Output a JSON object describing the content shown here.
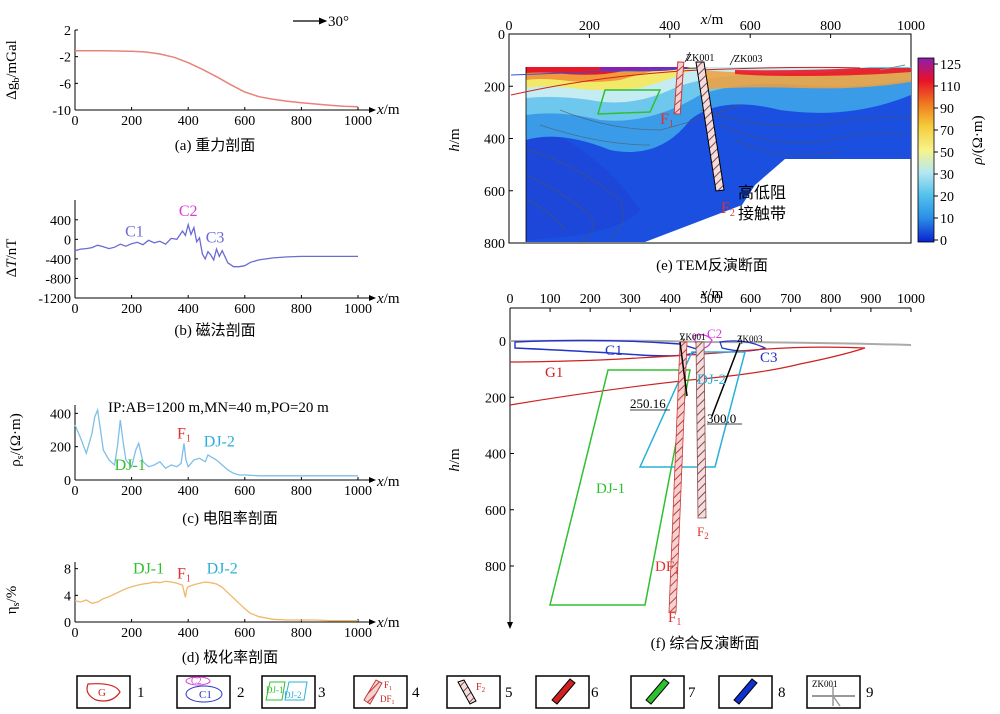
{
  "chart_data": [
    {
      "id": "a",
      "type": "line",
      "caption": "(a) 重力剖面",
      "xlabel": "x/m",
      "ylabel": "Δg_b/mGal",
      "x_ticks": [
        0,
        200,
        400,
        600,
        800,
        1000
      ],
      "y_ticks": [
        2,
        -2,
        -6,
        -10
      ],
      "xlim": [
        0,
        1000
      ],
      "ylim": [
        -10,
        2
      ],
      "color": "#e8837a",
      "direction_label": "30°",
      "series": [
        {
          "x": [
            0,
            50,
            100,
            150,
            200,
            250,
            300,
            350,
            400,
            450,
            500,
            550,
            600,
            650,
            700,
            750,
            800,
            850,
            900,
            950,
            1000
          ],
          "y": [
            -1.1,
            -1.1,
            -1.1,
            -1.15,
            -1.2,
            -1.3,
            -1.6,
            -2.1,
            -2.9,
            -3.9,
            -5.0,
            -6.2,
            -7.3,
            -8.0,
            -8.4,
            -8.7,
            -8.9,
            -9.1,
            -9.3,
            -9.45,
            -9.5
          ]
        }
      ]
    },
    {
      "id": "b",
      "type": "line",
      "caption": "(b) 磁法剖面",
      "xlabel": "x/m",
      "ylabel": "ΔT/nT",
      "x_ticks": [
        0,
        200,
        400,
        600,
        800,
        1000
      ],
      "y_ticks": [
        400,
        0,
        -400,
        -800,
        -1200
      ],
      "xlim": [
        0,
        1000
      ],
      "ylim": [
        -1200,
        600
      ],
      "color": "#6b6bd1",
      "annotations": [
        {
          "text": "C1",
          "x": 210,
          "y": 60,
          "color": "#6b6bd1"
        },
        {
          "text": "C2",
          "x": 400,
          "y": 480,
          "color": "#d63bd6"
        },
        {
          "text": "C3",
          "x": 495,
          "y": -60,
          "color": "#6b6bd1"
        }
      ],
      "series": [
        {
          "x": [
            0,
            20,
            40,
            60,
            80,
            100,
            120,
            140,
            160,
            180,
            200,
            220,
            240,
            260,
            280,
            300,
            320,
            340,
            360,
            380,
            390,
            400,
            410,
            420,
            430,
            440,
            450,
            460,
            470,
            480,
            490,
            500,
            510,
            520,
            540,
            560,
            580,
            600,
            620,
            650,
            700,
            750,
            800,
            850,
            900,
            950,
            1000
          ],
          "y": [
            -230,
            -200,
            -190,
            -170,
            -120,
            -150,
            -190,
            -160,
            -100,
            -140,
            -90,
            -60,
            -110,
            -20,
            -70,
            -40,
            -100,
            20,
            0,
            170,
            80,
            300,
            100,
            240,
            -50,
            30,
            -300,
            -400,
            -250,
            -320,
            -420,
            -200,
            -350,
            -230,
            -480,
            -560,
            -560,
            -540,
            -470,
            -420,
            -380,
            -360,
            -350,
            -350,
            -350,
            -350,
            -350
          ]
        }
      ]
    },
    {
      "id": "c",
      "type": "line",
      "caption": "(c) 电阻率剖面",
      "xlabel": "x/m",
      "ylabel": "ρ_s/(Ω·m)",
      "x_ticks": [
        0,
        200,
        400,
        600,
        800,
        1000
      ],
      "y_ticks": [
        400,
        200,
        0
      ],
      "xlim": [
        0,
        1000
      ],
      "ylim": [
        0,
        450
      ],
      "color": "#7fbfe8",
      "params_label": "IP:AB=1200 m,MN=40 m,PO=20 m",
      "annotations": [
        {
          "text": "F1",
          "x": 385,
          "y": 250,
          "color": "#e03030"
        },
        {
          "text": "DJ-2",
          "x": 510,
          "y": 200,
          "color": "#2ab0d8"
        },
        {
          "text": "DJ-1",
          "x": 195,
          "y": 60,
          "color": "#2fc02f"
        }
      ],
      "series": [
        {
          "x": [
            0,
            20,
            40,
            60,
            70,
            80,
            90,
            100,
            120,
            140,
            150,
            160,
            170,
            180,
            200,
            215,
            225,
            240,
            260,
            280,
            300,
            320,
            340,
            360,
            375,
            385,
            392,
            400,
            420,
            440,
            460,
            470,
            480,
            500,
            520,
            540,
            560,
            580,
            600,
            650,
            700,
            800,
            900,
            1000
          ],
          "y": [
            330,
            250,
            160,
            280,
            380,
            420,
            300,
            180,
            120,
            90,
            200,
            360,
            230,
            120,
            80,
            180,
            220,
            110,
            80,
            90,
            110,
            70,
            90,
            80,
            100,
            220,
            120,
            80,
            120,
            130,
            110,
            150,
            140,
            120,
            90,
            60,
            40,
            30,
            30,
            25,
            25,
            25,
            25,
            25
          ]
        }
      ]
    },
    {
      "id": "d",
      "type": "line",
      "caption": "(d) 极化率剖面",
      "xlabel": "x/m",
      "ylabel": "η_s/%",
      "x_ticks": [
        0,
        200,
        400,
        600,
        800,
        1000
      ],
      "y_ticks": [
        8,
        4,
        0
      ],
      "xlim": [
        0,
        1000
      ],
      "ylim": [
        0,
        9
      ],
      "color": "#f0b86a",
      "annotations": [
        {
          "text": "DJ-1",
          "x": 260,
          "y": 7.3,
          "color": "#2fc02f"
        },
        {
          "text": "F1",
          "x": 385,
          "y": 6.5,
          "color": "#e03030"
        },
        {
          "text": "DJ-2",
          "x": 520,
          "y": 7.3,
          "color": "#2ab0d8"
        }
      ],
      "series": [
        {
          "x": [
            0,
            20,
            40,
            60,
            80,
            100,
            120,
            140,
            160,
            180,
            200,
            220,
            240,
            260,
            280,
            300,
            320,
            340,
            360,
            380,
            390,
            395,
            400,
            420,
            440,
            460,
            480,
            500,
            520,
            540,
            560,
            580,
            600,
            620,
            650,
            700,
            750,
            800,
            850,
            900,
            950,
            1000
          ],
          "y": [
            3.2,
            3.0,
            3.3,
            2.8,
            3.0,
            3.5,
            3.8,
            4.2,
            4.6,
            5.0,
            5.3,
            5.5,
            5.7,
            5.8,
            6.0,
            5.9,
            6.1,
            6.0,
            5.8,
            5.5,
            3.7,
            5.0,
            5.3,
            5.6,
            5.8,
            6.0,
            5.9,
            5.7,
            5.2,
            4.4,
            3.6,
            2.8,
            2.0,
            1.3,
            0.8,
            0.4,
            0.3,
            0.3,
            0.3,
            0.2,
            0.2,
            0.2
          ]
        }
      ]
    },
    {
      "id": "e",
      "type": "heatmap",
      "caption": "(e) TEM反演断面",
      "xlabel": "x/m",
      "ylabel": "h/m",
      "x_ticks": [
        0,
        200,
        400,
        600,
        800,
        1000
      ],
      "y_ticks": [
        0,
        200,
        400,
        600,
        800
      ],
      "xlim": [
        0,
        1000
      ],
      "ylim": [
        0,
        800
      ],
      "colorbar_label": "ρ/(Ω·m)",
      "colorbar_ticks": [
        125,
        110,
        90,
        70,
        50,
        30,
        20,
        10,
        0
      ],
      "colorbar_colors": [
        "#8a1fb0",
        "#e8102a",
        "#f07a20",
        "#f5cc3a",
        "#f7f38a",
        "#b6e8f0",
        "#50c0ec",
        "#2a8fe6",
        "#1a58e0",
        "#0a22d0"
      ],
      "labels": [
        {
          "text": "ZK001"
        },
        {
          "text": "ZK003"
        },
        {
          "text": "F1"
        },
        {
          "text": "F2"
        },
        {
          "text": "高低阻"
        },
        {
          "text": "接触带"
        }
      ]
    },
    {
      "id": "f",
      "type": "other",
      "caption": "(f) 综合反演断面",
      "xlabel": "x/m",
      "ylabel": "h/m",
      "x_ticks": [
        0,
        100,
        200,
        300,
        400,
        500,
        600,
        700,
        800,
        900,
        1000
      ],
      "y_ticks": [
        0,
        200,
        400,
        600,
        800
      ],
      "xlim": [
        0,
        1000
      ],
      "ylim": [
        0,
        950
      ],
      "labels": [
        {
          "text": "ZK001"
        },
        {
          "text": "ZK003"
        },
        {
          "text": "C1"
        },
        {
          "text": "C2"
        },
        {
          "text": "C3"
        },
        {
          "text": "G1"
        },
        {
          "text": "DJ-1"
        },
        {
          "text": "DJ-2"
        },
        {
          "text": "250.16"
        },
        {
          "text": "300.0"
        },
        {
          "text": "F1"
        },
        {
          "text": "F2"
        },
        {
          "text": "DF1"
        }
      ]
    }
  ],
  "legend": [
    {
      "num": "1",
      "label": "G"
    },
    {
      "num": "2",
      "label": "C2 / C1"
    },
    {
      "num": "3",
      "label": "DJ-1 / DJ-2"
    },
    {
      "num": "4",
      "label": "F1 / DF1"
    },
    {
      "num": "5",
      "label": "F2"
    },
    {
      "num": "6",
      "label": ""
    },
    {
      "num": "7",
      "label": ""
    },
    {
      "num": "8",
      "label": ""
    },
    {
      "num": "9",
      "label": "ZK001"
    }
  ]
}
